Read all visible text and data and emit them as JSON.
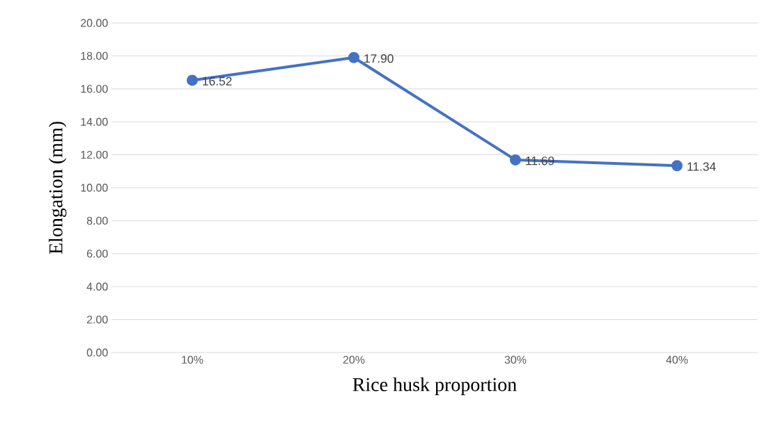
{
  "chart_data": {
    "type": "line",
    "xlabel": "Rice husk proportion",
    "ylabel": "Elongation (mm)",
    "categories": [
      "10%",
      "20%",
      "30%",
      "40%"
    ],
    "series": [
      {
        "color": "#4472c4",
        "values": [
          16.52,
          17.9,
          11.69,
          11.34
        ],
        "value_labels": [
          "16.52",
          "17.90",
          "11.69",
          "11.34"
        ]
      }
    ],
    "ylim": [
      0,
      20
    ],
    "yticks": [
      {
        "value": 0,
        "label": "0.00"
      },
      {
        "value": 2,
        "label": "2.00"
      },
      {
        "value": 4,
        "label": "4.00"
      },
      {
        "value": 6,
        "label": "6.00"
      },
      {
        "value": 8,
        "label": "8.00"
      },
      {
        "value": 10,
        "label": "10.00"
      },
      {
        "value": 12,
        "label": "12.00"
      },
      {
        "value": 14,
        "label": "14.00"
      },
      {
        "value": 16,
        "label": "16.00"
      },
      {
        "value": 18,
        "label": "18.00"
      },
      {
        "value": 20,
        "label": "20.00"
      }
    ],
    "grid": "y",
    "marker": "circle",
    "line_style": "solid",
    "legend": false
  }
}
